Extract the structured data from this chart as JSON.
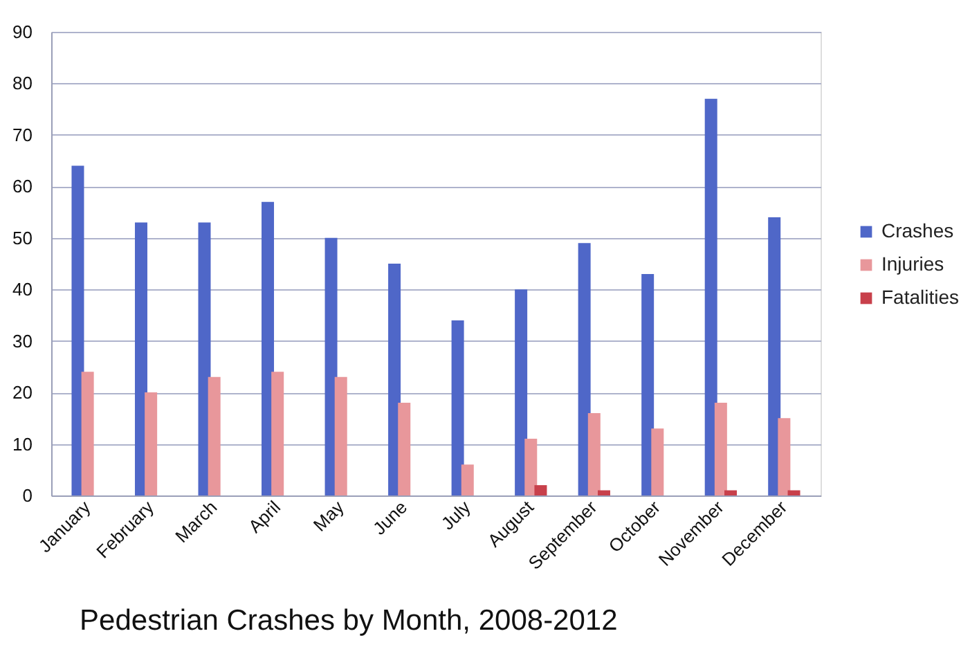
{
  "chart_data": {
    "type": "bar",
    "title": "Pedestrian Crashes  by Month, 2008-2012",
    "categories": [
      "January",
      "February",
      "March",
      "April",
      "May",
      "June",
      "July",
      "August",
      "September",
      "October",
      "November",
      "December"
    ],
    "series": [
      {
        "name": "Crashes",
        "color": "#4f67c8",
        "values": [
          64,
          53,
          53,
          57,
          50,
          45,
          34,
          40,
          49,
          43,
          77,
          54
        ]
      },
      {
        "name": "Injuries",
        "color": "#e8979b",
        "values": [
          24,
          20,
          23,
          24,
          23,
          18,
          6,
          11,
          16,
          13,
          18,
          15
        ]
      },
      {
        "name": "Fatalities",
        "color": "#c8404b",
        "values": [
          0,
          0,
          0,
          0,
          0,
          0,
          0,
          2,
          1,
          0,
          1,
          1
        ]
      }
    ],
    "ylim": [
      0,
      90
    ],
    "yticks": [
      0,
      10,
      20,
      30,
      40,
      50,
      60,
      70,
      80,
      90
    ],
    "grid": "y",
    "legend": "right"
  }
}
